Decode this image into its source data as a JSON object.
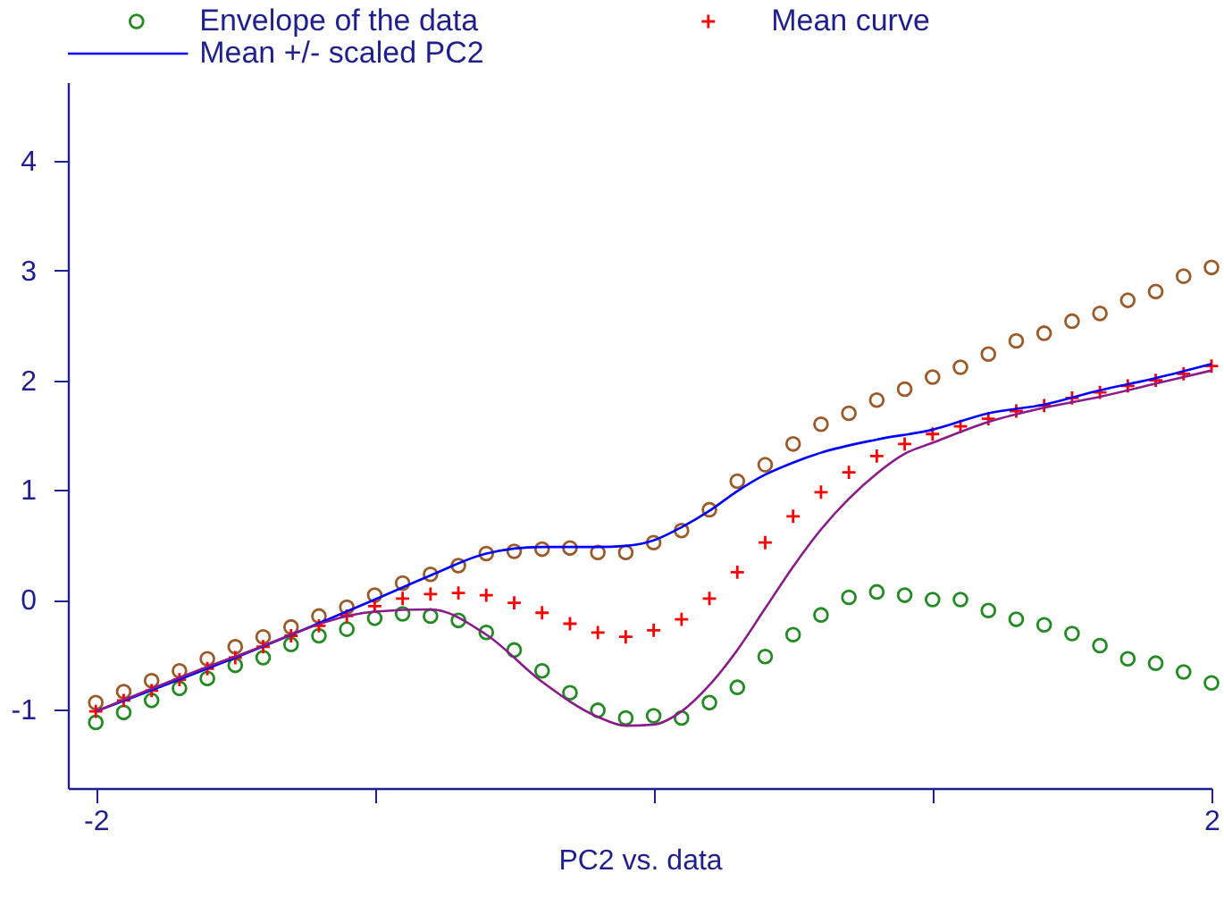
{
  "chart_data": {
    "type": "scatter",
    "xlabel": "PC2 vs. data",
    "legend": "top",
    "grid": false,
    "xlim": [
      -2.1,
      2.0
    ],
    "xticks": [
      -2,
      {
        "value": -1,
        "label": null
      },
      {
        "value": 0,
        "label": null
      },
      {
        "value": 1,
        "label": null
      },
      2
    ],
    "ylim": [
      -1.72,
      4.72
    ],
    "yticks": [
      -1,
      0,
      1,
      2,
      3,
      4
    ],
    "x": [
      -2,
      -1.9,
      -1.8,
      -1.7,
      -1.6,
      -1.5,
      -1.4,
      -1.3,
      -1.2,
      -1.1,
      -1,
      -0.9,
      -0.8,
      -0.7,
      -0.6,
      -0.5,
      -0.4,
      -0.3,
      -0.2,
      -0.1,
      0,
      0.1,
      0.2,
      0.3,
      0.4,
      0.5,
      0.6,
      0.7,
      0.8,
      0.9,
      1,
      1.1,
      1.2,
      1.3,
      1.4,
      1.5,
      1.6,
      1.7,
      1.8,
      1.9,
      2
    ],
    "series": [
      {
        "name": "Envelope of the data",
        "marker": "circle",
        "color": "#228b22",
        "values": [
          -1.12,
          -1.03,
          -0.92,
          -0.81,
          -0.72,
          -0.6,
          -0.53,
          -0.41,
          -0.33,
          -0.27,
          -0.17,
          -0.13,
          -0.15,
          -0.19,
          -0.3,
          -0.46,
          -0.65,
          -0.85,
          -1.01,
          -1.08,
          -1.06,
          -1.08,
          -0.94,
          -0.8,
          -0.52,
          -0.32,
          -0.14,
          0.02,
          0.07,
          0.04,
          0.0,
          0.0,
          -0.1,
          -0.18,
          -0.23,
          -0.31,
          -0.42,
          -0.54,
          -0.58,
          -0.66,
          -0.76
        ]
      },
      {
        "marker": "circle",
        "color": "#9c5a28",
        "values": [
          -0.94,
          -0.84,
          -0.74,
          -0.65,
          -0.54,
          -0.43,
          -0.34,
          -0.25,
          -0.15,
          -0.07,
          0.04,
          0.15,
          0.23,
          0.31,
          0.42,
          0.44,
          0.46,
          0.47,
          0.43,
          0.43,
          0.52,
          0.63,
          0.82,
          1.08,
          1.23,
          1.42,
          1.6,
          1.7,
          1.82,
          1.92,
          2.03,
          2.12,
          2.24,
          2.36,
          2.43,
          2.54,
          2.61,
          2.73,
          2.81,
          2.95,
          3.03
        ]
      },
      {
        "name": "Mean curve",
        "marker": "cross",
        "color": "#ff0000",
        "values": [
          -1.02,
          -0.92,
          -0.83,
          -0.73,
          -0.63,
          -0.53,
          -0.43,
          -0.33,
          -0.24,
          -0.15,
          -0.06,
          0.01,
          0.05,
          0.06,
          0.04,
          -0.03,
          -0.12,
          -0.22,
          -0.3,
          -0.34,
          -0.28,
          -0.18,
          0.01,
          0.25,
          0.52,
          0.76,
          0.98,
          1.16,
          1.31,
          1.42,
          1.51,
          1.58,
          1.65,
          1.72,
          1.77,
          1.84,
          1.89,
          1.95,
          2.0,
          2.06,
          2.13
        ]
      },
      {
        "name": "Mean +/- scaled PC2",
        "type": "line",
        "color": "#0000ff",
        "x": [
          -2,
          -1.5,
          -1,
          -0.8,
          -0.6,
          -0.4,
          -0.2,
          -0.1,
          0,
          0.1,
          0.2,
          0.3,
          0.4,
          0.5,
          0.6,
          0.8,
          1,
          1.2,
          1.4,
          1.6,
          1.8,
          2
        ],
        "values": [
          -1.02,
          -0.53,
          0.0,
          0.22,
          0.42,
          0.48,
          0.48,
          0.49,
          0.54,
          0.66,
          0.81,
          0.99,
          1.14,
          1.25,
          1.34,
          1.46,
          1.55,
          1.7,
          1.78,
          1.91,
          2.02,
          2.15
        ]
      },
      {
        "type": "line",
        "color": "#8b1a8b",
        "x": [
          -2,
          -1.5,
          -1,
          -0.8,
          -0.6,
          -0.4,
          -0.2,
          -0.1,
          0,
          0.1,
          0.2,
          0.3,
          0.4,
          0.5,
          0.6,
          0.7,
          0.8,
          0.9,
          1,
          1.2,
          1.4,
          1.6,
          1.8,
          2
        ],
        "values": [
          -1.02,
          -0.52,
          -0.11,
          -0.09,
          -0.32,
          -0.75,
          -1.07,
          -1.15,
          -1.14,
          -1.02,
          -0.78,
          -0.46,
          -0.08,
          0.3,
          0.64,
          0.92,
          1.15,
          1.33,
          1.43,
          1.62,
          1.75,
          1.85,
          1.97,
          2.09
        ]
      }
    ]
  }
}
